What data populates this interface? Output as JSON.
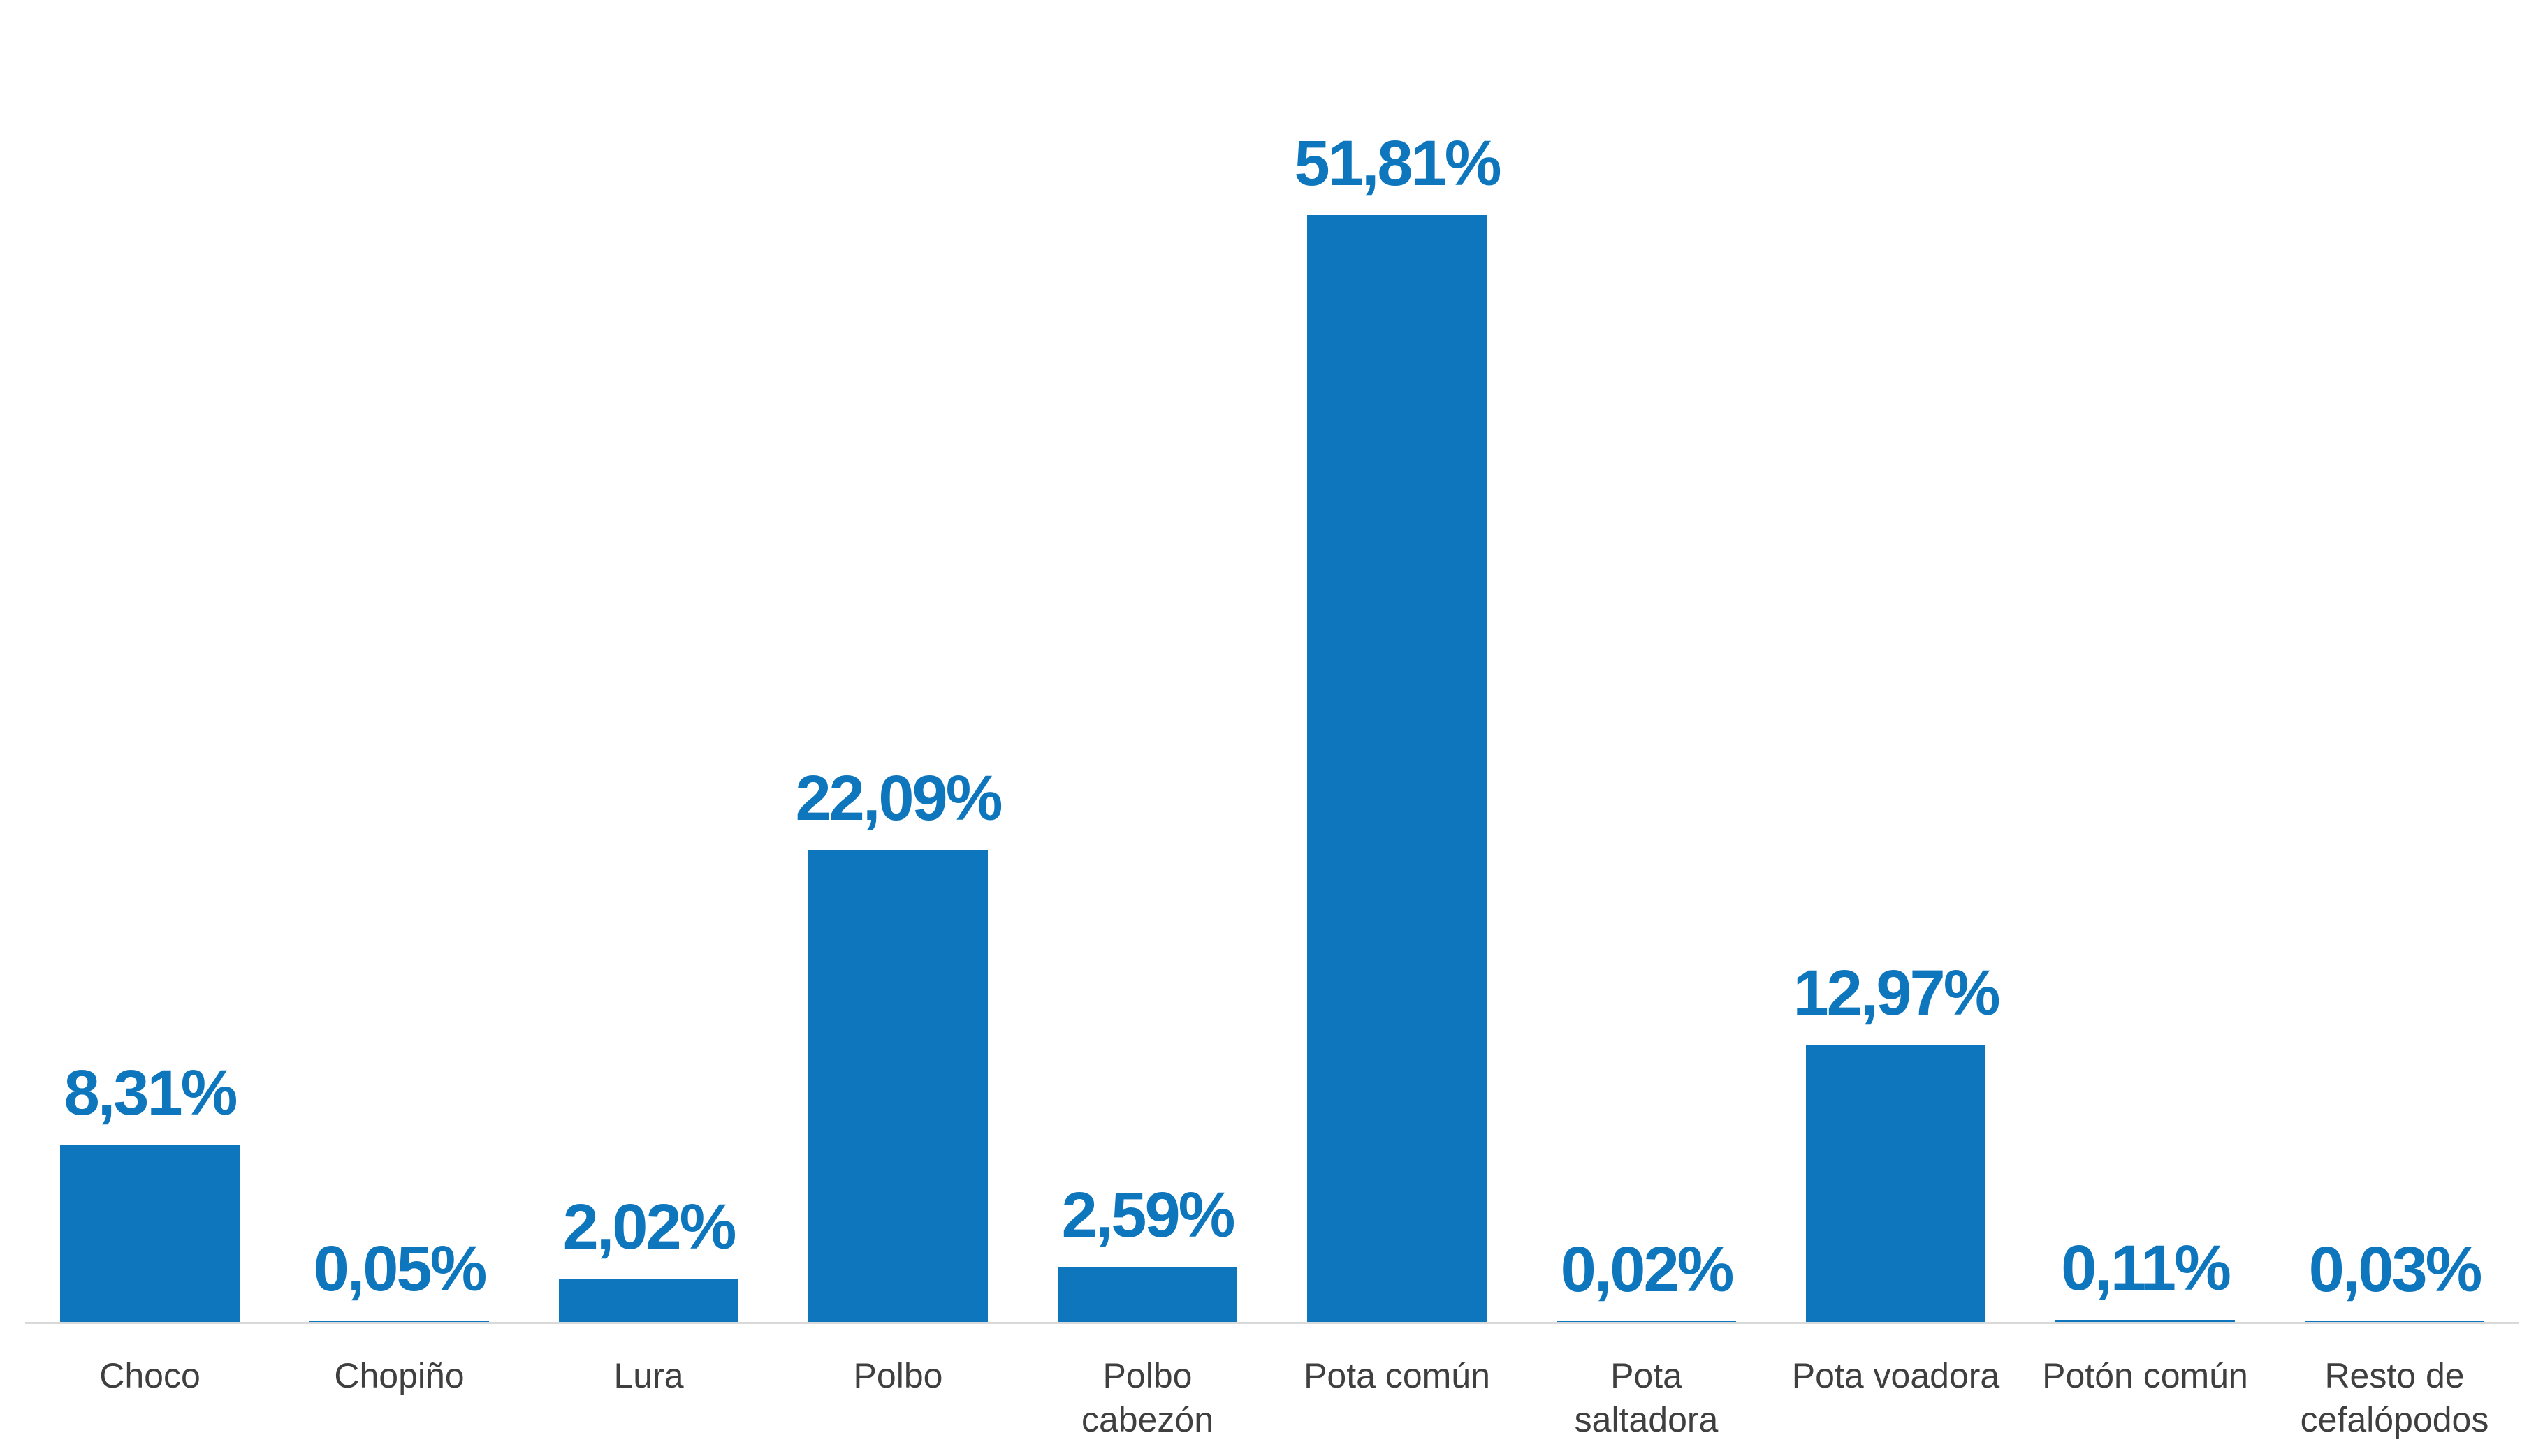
{
  "chart_data": {
    "type": "bar",
    "title": "",
    "xlabel": "",
    "ylabel": "",
    "categories": [
      "Choco",
      "Chopiño",
      "Lura",
      "Polbo",
      "Polbo\ncabezón",
      "Pota común",
      "Pota\nsaltadora",
      "Pota voadora",
      "Potón común",
      "Resto de\ncefalópodos"
    ],
    "values": [
      8.31,
      0.05,
      2.02,
      22.09,
      2.59,
      51.81,
      0.02,
      12.97,
      0.11,
      0.03
    ],
    "value_labels": [
      "8,31%",
      "0,05%",
      "2,02%",
      "22,09%",
      "2,59%",
      "51,81%",
      "0,02%",
      "12,97%",
      "0,11%",
      "0,03%"
    ],
    "unit": "%",
    "decimal_separator": ",",
    "ylim": [
      0,
      51.81
    ],
    "grid": false,
    "legend": false,
    "y_axis_visible": false,
    "data_labels_position": "above-bar",
    "colors": {
      "bar": "#0e76bc",
      "value_label": "#0e76bc",
      "category_label": "#3f3f3f",
      "axis_line": "#d9d9d9",
      "background": "#ffffff"
    }
  }
}
